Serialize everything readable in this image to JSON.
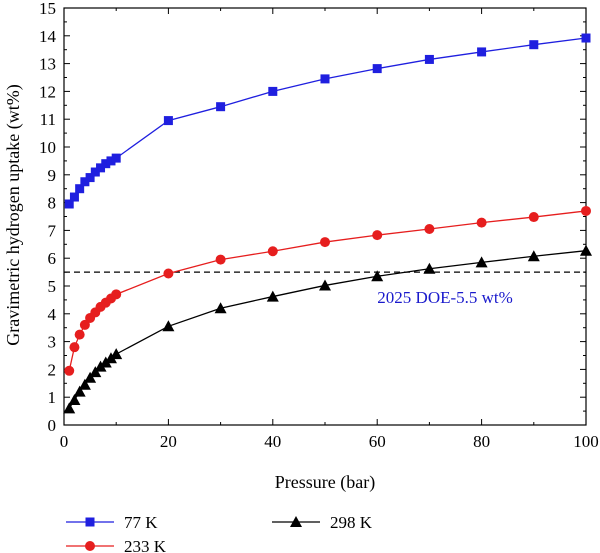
{
  "chart_data": {
    "type": "line",
    "xlabel": "Pressure (bar)",
    "ylabel": "Gravimetric hydrogen uptake (wt%)",
    "xlim": [
      0,
      100
    ],
    "ylim": [
      0,
      15
    ],
    "xticks": [
      0,
      20,
      40,
      60,
      80,
      100
    ],
    "yticks": [
      0,
      1,
      2,
      3,
      4,
      5,
      6,
      7,
      8,
      9,
      10,
      11,
      12,
      13,
      14,
      15
    ],
    "grid": false,
    "legend_position": "bottom",
    "series": [
      {
        "name": "77 K",
        "color": "#1f1fdf",
        "marker": "square",
        "x": [
          1,
          2,
          3,
          4,
          5,
          6,
          7,
          8,
          9,
          10,
          20,
          30,
          40,
          50,
          60,
          70,
          80,
          90,
          100
        ],
        "y": [
          7.95,
          8.2,
          8.5,
          8.75,
          8.9,
          9.1,
          9.25,
          9.4,
          9.5,
          9.6,
          10.95,
          11.45,
          12.0,
          12.45,
          12.82,
          13.15,
          13.42,
          13.68,
          13.92
        ]
      },
      {
        "name": "233 K",
        "color": "#e61e1e",
        "marker": "circle",
        "x": [
          1,
          2,
          3,
          4,
          5,
          6,
          7,
          8,
          9,
          10,
          20,
          30,
          40,
          50,
          60,
          70,
          80,
          90,
          100
        ],
        "y": [
          1.95,
          2.8,
          3.25,
          3.6,
          3.85,
          4.05,
          4.25,
          4.4,
          4.55,
          4.7,
          5.45,
          5.95,
          6.25,
          6.58,
          6.83,
          7.05,
          7.28,
          7.48,
          7.7
        ]
      },
      {
        "name": "298 K",
        "color": "#000000",
        "marker": "triangle",
        "x": [
          1,
          2,
          3,
          4,
          5,
          6,
          7,
          8,
          9,
          10,
          20,
          30,
          40,
          50,
          60,
          70,
          80,
          90,
          100
        ],
        "y": [
          0.6,
          0.9,
          1.2,
          1.45,
          1.7,
          1.9,
          2.1,
          2.25,
          2.4,
          2.55,
          3.55,
          4.2,
          4.62,
          5.02,
          5.35,
          5.62,
          5.85,
          6.07,
          6.27
        ]
      }
    ],
    "reference_line": {
      "y": 5.5,
      "style": "dashed",
      "color": "#000000"
    },
    "annotation": {
      "text": "2025 DOE-5.5 wt%",
      "color": "#1a1acc",
      "x": 73,
      "y": 4.6
    }
  }
}
